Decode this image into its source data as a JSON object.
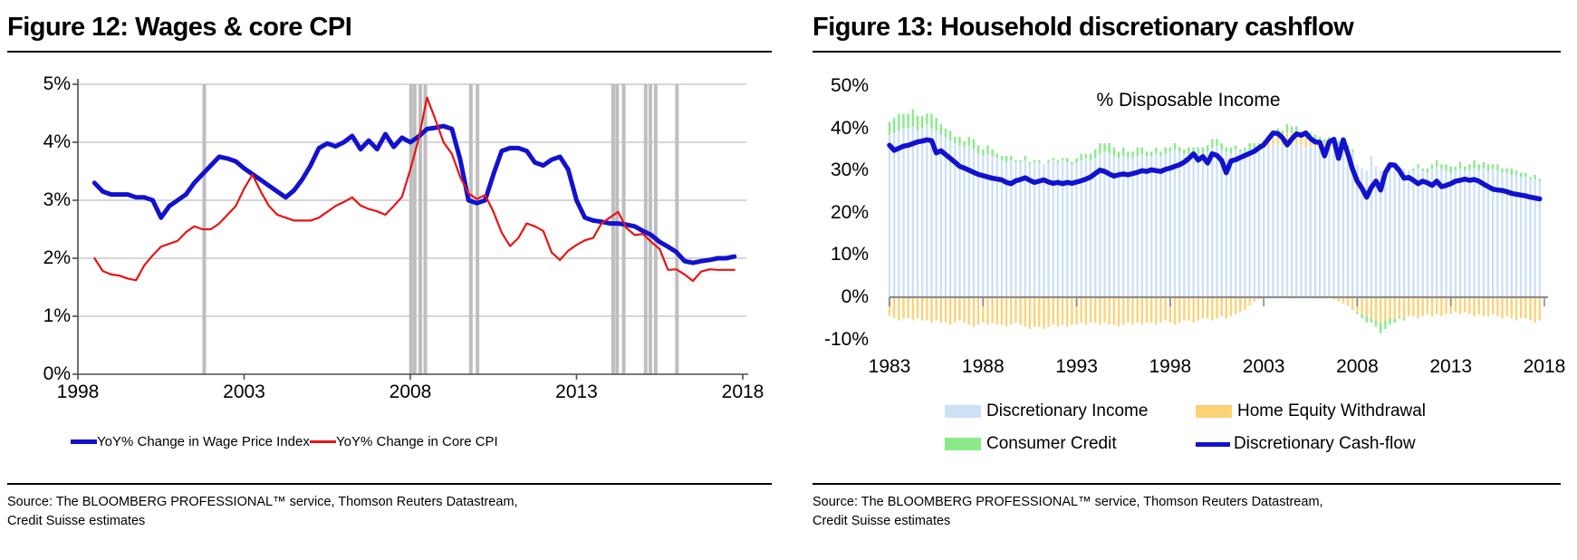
{
  "source_note": {
    "line1": "Source: The BLOOMBERG PROFESSIONAL™ service, Thomson Reuters Datastream,",
    "line2": "Credit Suisse estimates"
  },
  "chart_data": [
    {
      "id": "fig12",
      "type": "line",
      "title": "Figure 12: Wages & core CPI",
      "x_start": 1998.5,
      "x_step": 0.25,
      "xlim": [
        1998,
        2018
      ],
      "ylim": [
        0,
        5
      ],
      "x_tick_labels": [
        "1998",
        "2003",
        "2008",
        "2013",
        "2018"
      ],
      "x_tick_values": [
        1998,
        2003,
        2008,
        2013,
        2018
      ],
      "y_tick_labels": [
        "0%",
        "1%",
        "2%",
        "3%",
        "4%",
        "5%"
      ],
      "y_tick_values": [
        0,
        1,
        2,
        3,
        4,
        5
      ],
      "grid": "horizontal",
      "grid_color": "#C9C9C9",
      "axis_color": "#4D4D4D",
      "event_band_color": "#BEBEBE",
      "event_band_years": [
        2001.8,
        2008.02,
        2008.13,
        2008.3,
        2008.45,
        2009.82,
        2010.02,
        2014.1,
        2014.22,
        2014.42,
        2015.08,
        2015.22,
        2015.38,
        2016.02
      ],
      "legend_position": "bottom",
      "series": [
        {
          "name": "YoY% Change in Wage Price Index",
          "color": "#1212CE",
          "stroke_width": 5,
          "values": [
            3.3,
            3.15,
            3.1,
            3.1,
            3.1,
            3.05,
            3.05,
            3.0,
            2.7,
            2.9,
            3.0,
            3.1,
            3.3,
            3.45,
            3.6,
            3.75,
            3.72,
            3.67,
            3.55,
            3.45,
            3.35,
            3.25,
            3.15,
            3.05,
            3.17,
            3.36,
            3.6,
            3.9,
            3.98,
            3.93,
            4.0,
            4.11,
            3.88,
            4.03,
            3.88,
            4.14,
            3.92,
            4.08,
            4.0,
            4.1,
            4.23,
            4.25,
            4.28,
            4.23,
            3.7,
            3.0,
            2.95,
            3.0,
            3.45,
            3.85,
            3.9,
            3.9,
            3.85,
            3.65,
            3.6,
            3.7,
            3.75,
            3.53,
            3.0,
            2.7,
            2.65,
            2.63,
            2.6,
            2.6,
            2.58,
            2.55,
            2.47,
            2.4,
            2.28,
            2.2,
            2.11,
            1.95,
            1.92,
            1.95,
            1.97,
            2.0,
            2.0,
            2.03
          ]
        },
        {
          "name": "YoY% Change in Core CPI",
          "color": "#E81414",
          "stroke_width": 2.2,
          "values": [
            2.0,
            1.78,
            1.72,
            1.7,
            1.65,
            1.62,
            1.88,
            2.05,
            2.2,
            2.25,
            2.3,
            2.45,
            2.55,
            2.5,
            2.5,
            2.6,
            2.75,
            2.9,
            3.2,
            3.44,
            3.15,
            2.9,
            2.75,
            2.7,
            2.65,
            2.65,
            2.65,
            2.7,
            2.8,
            2.9,
            2.97,
            3.05,
            2.91,
            2.85,
            2.81,
            2.75,
            2.9,
            3.06,
            3.53,
            4.06,
            4.77,
            4.4,
            4.0,
            3.8,
            3.4,
            3.12,
            3.02,
            3.09,
            2.8,
            2.44,
            2.21,
            2.35,
            2.6,
            2.55,
            2.47,
            2.1,
            1.97,
            2.13,
            2.23,
            2.31,
            2.35,
            2.6,
            2.7,
            2.8,
            2.52,
            2.4,
            2.42,
            2.28,
            2.16,
            1.8,
            1.81,
            1.72,
            1.61,
            1.77,
            1.81,
            1.8,
            1.8,
            1.8
          ]
        }
      ]
    },
    {
      "id": "fig13",
      "type": "bar+line",
      "title": "Figure 13: Household discretionary cashflow",
      "annotation": "% Disposable Income",
      "x_start": 1983.0,
      "x_step": 0.25,
      "xlim": [
        1982.8,
        2018.2
      ],
      "ylim": [
        -10,
        50
      ],
      "x_tick_labels": [
        "1983",
        "1988",
        "1993",
        "1998",
        "2003",
        "2008",
        "2013",
        "2018"
      ],
      "x_tick_values": [
        1983,
        1988,
        1993,
        1998,
        2003,
        2008,
        2013,
        2018
      ],
      "y_tick_labels": [
        "-10%",
        "0%",
        "10%",
        "20%",
        "30%",
        "40%",
        "50%"
      ],
      "y_tick_values": [
        -10,
        0,
        10,
        20,
        30,
        40,
        50
      ],
      "grid": "none",
      "axis_color": "#8C8C8C",
      "bar_series": [
        {
          "name": "Discretionary Income",
          "color": "#CDE1F5",
          "values": [
            38.5,
            39.0,
            39.5,
            40.0,
            40.0,
            40.5,
            39.5,
            40.0,
            41.0,
            40.0,
            39.5,
            38.5,
            38.0,
            37.0,
            36.5,
            36.0,
            35.5,
            36.0,
            35.0,
            34.0,
            33.5,
            34.0,
            33.5,
            33.0,
            32.5,
            32.0,
            32.5,
            32.0,
            32.0,
            32.5,
            31.5,
            32.0,
            32.0,
            31.5,
            32.0,
            32.5,
            32.0,
            32.5,
            32.0,
            31.5,
            32.0,
            32.5,
            33.0,
            32.5,
            33.0,
            34.0,
            34.5,
            34.0,
            33.5,
            33.0,
            33.5,
            33.0,
            33.0,
            33.5,
            34.0,
            33.5,
            33.5,
            34.0,
            33.5,
            34.0,
            34.5,
            35.0,
            34.5,
            34.0,
            34.0,
            34.5,
            34.0,
            33.5,
            34.5,
            35.5,
            36.0,
            35.0,
            34.5,
            34.0,
            35.0,
            34.5,
            34.5,
            35.0,
            35.5,
            35.0,
            35.0,
            35.5,
            36.0,
            36.5,
            36.0,
            36.5,
            36.0,
            36.5,
            36.0,
            35.5,
            36.0,
            35.5,
            35.5,
            36.0,
            36.5,
            36.0,
            36.0,
            35.5,
            35.0,
            34.5,
            31.5,
            30.5,
            30.0,
            33.5,
            31.0,
            30.0,
            29.5,
            30.0,
            30.5,
            31.0,
            30.5,
            30.0,
            30.0,
            30.5,
            30.0,
            29.5,
            30.5,
            31.0,
            30.5,
            30.0,
            29.5,
            30.0,
            30.5,
            30.0,
            30.0,
            30.5,
            30.0,
            30.5,
            30.0,
            30.5,
            30.0,
            29.5,
            29.5,
            29.0,
            29.0,
            28.5,
            28.5,
            28.0,
            28.0,
            27.5
          ]
        },
        {
          "name": "Home Equity Withdrawal",
          "color": "#FCD277",
          "values": [
            -4.5,
            -5.0,
            -5.5,
            -5.0,
            -5.0,
            -5.5,
            -5.0,
            -5.5,
            -5.5,
            -6.0,
            -5.5,
            -6.0,
            -6.0,
            -6.5,
            -6.0,
            -5.5,
            -6.0,
            -6.5,
            -7.0,
            -6.5,
            -6.0,
            -6.5,
            -6.0,
            -6.5,
            -6.5,
            -7.0,
            -6.5,
            -6.0,
            -6.5,
            -7.0,
            -7.5,
            -7.0,
            -7.0,
            -7.5,
            -7.0,
            -6.5,
            -7.0,
            -6.5,
            -7.0,
            -6.5,
            -6.5,
            -6.0,
            -6.5,
            -6.0,
            -6.0,
            -6.5,
            -6.0,
            -6.5,
            -6.5,
            -7.0,
            -6.5,
            -6.0,
            -6.5,
            -6.0,
            -6.5,
            -6.0,
            -6.0,
            -6.5,
            -6.0,
            -5.5,
            -6.0,
            -6.5,
            -6.0,
            -5.5,
            -5.5,
            -6.0,
            -5.5,
            -5.0,
            -5.0,
            -5.5,
            -5.0,
            -4.5,
            -5.0,
            -4.5,
            -4.0,
            -3.5,
            -3.0,
            -2.0,
            -1.0,
            -0.5,
            0.5,
            1.5,
            2.0,
            2.5,
            2.0,
            2.5,
            3.0,
            2.5,
            2.0,
            2.5,
            2.0,
            1.5,
            1.0,
            0.5,
            0.0,
            -0.5,
            -1.0,
            -1.5,
            -2.0,
            -3.0,
            -3.5,
            -4.0,
            -4.5,
            -5.0,
            -5.5,
            -6.0,
            -5.5,
            -5.0,
            -5.0,
            -4.5,
            -5.0,
            -4.5,
            -4.5,
            -5.0,
            -4.5,
            -4.0,
            -4.5,
            -4.0,
            -4.5,
            -4.0,
            -4.0,
            -3.5,
            -4.0,
            -3.5,
            -4.0,
            -4.5,
            -4.0,
            -4.5,
            -4.5,
            -4.0,
            -4.5,
            -5.0,
            -4.5,
            -5.0,
            -5.5,
            -5.0,
            -5.0,
            -5.5,
            -6.0,
            -5.5
          ]
        },
        {
          "name": "Consumer Credit",
          "color": "#8AEA8A",
          "values": [
            3.0,
            3.5,
            4.0,
            3.5,
            3.5,
            4.0,
            3.5,
            3.0,
            2.5,
            3.5,
            3.0,
            2.5,
            2.0,
            2.5,
            1.5,
            2.0,
            1.5,
            2.0,
            2.5,
            2.0,
            1.5,
            2.0,
            1.5,
            1.0,
            1.0,
            1.5,
            1.0,
            0.5,
            0.5,
            1.0,
            0.5,
            0.5,
            0.5,
            0.0,
            0.5,
            0.5,
            0.5,
            0.5,
            1.0,
            0.5,
            1.0,
            1.5,
            1.0,
            1.5,
            2.0,
            2.5,
            2.0,
            2.5,
            2.0,
            1.5,
            2.0,
            1.5,
            1.5,
            2.0,
            1.5,
            1.0,
            1.0,
            1.5,
            1.0,
            1.5,
            1.0,
            1.5,
            1.0,
            1.0,
            1.5,
            1.0,
            1.5,
            2.0,
            1.5,
            2.0,
            1.5,
            1.5,
            1.0,
            1.5,
            1.0,
            0.5,
            1.0,
            1.5,
            1.0,
            1.5,
            1.5,
            1.0,
            1.5,
            1.0,
            1.5,
            2.0,
            1.5,
            1.5,
            1.0,
            1.5,
            1.0,
            1.5,
            1.5,
            1.0,
            1.5,
            1.0,
            1.0,
            1.5,
            1.0,
            0.5,
            -0.5,
            -1.0,
            -1.5,
            -1.0,
            -1.5,
            -2.5,
            -2.0,
            -1.5,
            -1.0,
            -0.5,
            -0.5,
            0.0,
            0.5,
            1.0,
            0.5,
            1.0,
            1.0,
            1.5,
            1.0,
            1.5,
            1.5,
            1.0,
            1.5,
            1.0,
            1.5,
            2.0,
            1.5,
            1.5,
            1.5,
            1.0,
            1.5,
            1.0,
            1.0,
            1.5,
            1.0,
            1.0,
            1.0,
            0.5,
            1.0,
            0.5
          ]
        }
      ],
      "line_series": {
        "name": "Discretionary Cash-flow",
        "color": "#1212CE",
        "stroke_width": 5.5,
        "values": [
          36.0,
          34.8,
          35.3,
          35.8,
          36.0,
          36.4,
          36.8,
          37.0,
          37.3,
          37.1,
          34.2,
          34.7,
          33.8,
          32.9,
          32.0,
          31.0,
          30.6,
          30.1,
          29.6,
          29.1,
          28.8,
          28.5,
          28.2,
          28.0,
          27.8,
          27.2,
          26.9,
          27.6,
          27.9,
          28.3,
          27.7,
          27.2,
          27.5,
          27.8,
          27.3,
          27.0,
          27.2,
          26.9,
          27.2,
          27.0,
          27.3,
          27.6,
          28.0,
          28.5,
          29.3,
          30.1,
          29.8,
          29.2,
          28.7,
          29.0,
          29.2,
          29.0,
          29.3,
          29.6,
          30.0,
          29.8,
          30.2,
          30.0,
          29.8,
          30.3,
          30.6,
          31.0,
          31.4,
          32.0,
          32.9,
          34.0,
          32.5,
          33.3,
          31.8,
          34.0,
          33.6,
          32.4,
          29.5,
          32.3,
          32.6,
          33.1,
          33.6,
          34.1,
          34.6,
          35.4,
          36.1,
          37.5,
          38.9,
          38.8,
          37.8,
          36.1,
          37.5,
          38.7,
          38.4,
          38.9,
          37.6,
          36.8,
          36.7,
          33.5,
          36.8,
          37.4,
          32.9,
          37.3,
          34.0,
          30.3,
          27.5,
          25.8,
          23.7,
          26.0,
          27.5,
          25.4,
          29.5,
          31.4,
          31.3,
          30.0,
          28.2,
          28.4,
          27.7,
          26.9,
          27.5,
          27.1,
          26.5,
          27.5,
          26.2,
          26.5,
          26.9,
          27.5,
          27.7,
          28.0,
          27.7,
          27.9,
          27.5,
          26.8,
          26.2,
          25.6,
          25.4,
          25.3,
          25.0,
          24.6,
          24.4,
          24.2,
          24.0,
          23.7,
          23.5,
          23.3
        ]
      }
    }
  ]
}
